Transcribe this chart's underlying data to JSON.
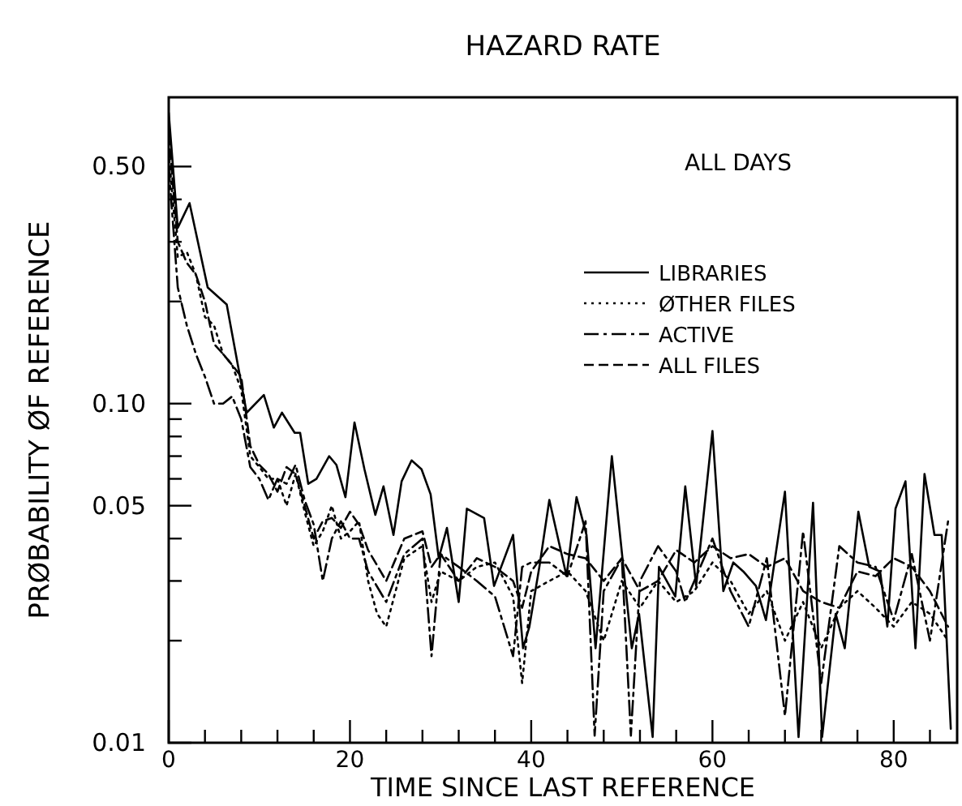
{
  "chart_data": {
    "type": "line",
    "title": "HAZARD RATE",
    "xlabel": "TIME SINCE LAST REFERENCE",
    "ylabel": "PRØBABILITY ØF REFERENCE",
    "annotations": [
      "ALL DAYS"
    ],
    "log": "y",
    "grid": false,
    "legend": "top right",
    "xlim": [
      0,
      87
    ],
    "ylim": [
      0.01,
      0.8
    ],
    "xticks": [
      0,
      {
        "value": 4,
        "label": null
      },
      {
        "value": 8,
        "label": null
      },
      {
        "value": 12,
        "label": null
      },
      {
        "value": 16,
        "label": null
      },
      20,
      {
        "value": 24,
        "label": null
      },
      {
        "value": 28,
        "label": null
      },
      {
        "value": 32,
        "label": null
      },
      {
        "value": 36,
        "label": null
      },
      40,
      {
        "value": 44,
        "label": null
      },
      {
        "value": 48,
        "label": null
      },
      {
        "value": 52,
        "label": null
      },
      {
        "value": 56,
        "label": null
      },
      60,
      {
        "value": 64,
        "label": null
      },
      {
        "value": 68,
        "label": null
      },
      {
        "value": 72,
        "label": null
      },
      {
        "value": 76,
        "label": null
      },
      80,
      {
        "value": 84,
        "label": null
      }
    ],
    "yticks": [
      0.01,
      {
        "value": 0.02,
        "label": null
      },
      {
        "value": 0.03,
        "label": null
      },
      {
        "value": 0.04,
        "label": null
      },
      0.05,
      {
        "value": 0.06,
        "label": null
      },
      {
        "value": 0.07,
        "label": null
      },
      {
        "value": 0.08,
        "label": null
      },
      {
        "value": 0.09,
        "label": null
      },
      {
        "value": 0.1,
        "label": "0.10"
      },
      {
        "value": 0.2,
        "label": null
      },
      {
        "value": 0.3,
        "label": null
      },
      {
        "value": 0.4,
        "label": null
      },
      {
        "value": 0.5,
        "label": "0.50"
      }
    ],
    "series": [
      {
        "name": "LIBRARIES",
        "color": "#000000",
        "line_style": "solid",
        "x": [
          0,
          1,
          2.3,
          4.3,
          6.4,
          8.6,
          10.5,
          11.6,
          12.5,
          13.9,
          14.5,
          15.4,
          16.3,
          17.7,
          18.5,
          19.5,
          20.5,
          21.6,
          22.8,
          23.7,
          24.8,
          25.7,
          26.8,
          27.9,
          28.9,
          29.8,
          30.7,
          32,
          32.9,
          34.8,
          35.9,
          38,
          39.1,
          39.8,
          40.9,
          42,
          43.9,
          45,
          46.1,
          47.1,
          48.9,
          51.1,
          51.9,
          53.4,
          54.1,
          55.9,
          57,
          58.2,
          60,
          61.2,
          62.3,
          63.4,
          64.8,
          65.9,
          68,
          69.5,
          71.1,
          72.1,
          73.6,
          74.6,
          76.1,
          77.3,
          78.5,
          79.3,
          80.2,
          81.3,
          82.4,
          83.4,
          84.5,
          85.3,
          86.3
        ],
        "values": [
          0.72,
          0.33,
          0.39,
          0.22,
          0.196,
          0.094,
          0.106,
          0.085,
          0.094,
          0.082,
          0.082,
          0.058,
          0.06,
          0.07,
          0.066,
          0.053,
          0.088,
          0.064,
          0.047,
          0.057,
          0.041,
          0.059,
          0.068,
          0.064,
          0.054,
          0.035,
          0.043,
          0.026,
          0.049,
          0.046,
          0.029,
          0.041,
          0.019,
          0.022,
          0.033,
          0.052,
          0.031,
          0.053,
          0.041,
          0.019,
          0.07,
          0.019,
          0.024,
          0.0104,
          0.033,
          0.027,
          0.057,
          0.029,
          0.083,
          0.028,
          0.034,
          0.032,
          0.029,
          0.023,
          0.055,
          0.0104,
          0.051,
          0.0104,
          0.024,
          0.019,
          0.048,
          0.033,
          0.032,
          0.022,
          0.049,
          0.059,
          0.019,
          0.062,
          0.041,
          0.041,
          0.011
        ]
      },
      {
        "name": "ØTHER FILES",
        "color": "#000000",
        "line_style": "dotted",
        "x": [
          0,
          1,
          2,
          3,
          4,
          5,
          6,
          7,
          8,
          9,
          10,
          11,
          12,
          13,
          14,
          15,
          16,
          17,
          18,
          19,
          20,
          21,
          22,
          23,
          24,
          26,
          28,
          29,
          30,
          32,
          34,
          36,
          38,
          39,
          40,
          42,
          44,
          46,
          48,
          50,
          52,
          54,
          56,
          58,
          60,
          62,
          64,
          66,
          68,
          70,
          72,
          74,
          76,
          78,
          80,
          82,
          84,
          86
        ],
        "values": [
          0.55,
          0.27,
          0.28,
          0.24,
          0.18,
          0.17,
          0.14,
          0.13,
          0.11,
          0.07,
          0.065,
          0.06,
          0.06,
          0.05,
          0.062,
          0.048,
          0.038,
          0.042,
          0.05,
          0.04,
          0.042,
          0.045,
          0.03,
          0.024,
          0.022,
          0.035,
          0.038,
          0.026,
          0.032,
          0.03,
          0.033,
          0.034,
          0.027,
          0.015,
          0.028,
          0.03,
          0.032,
          0.028,
          0.02,
          0.03,
          0.025,
          0.03,
          0.026,
          0.028,
          0.034,
          0.03,
          0.024,
          0.028,
          0.02,
          0.026,
          0.019,
          0.025,
          0.028,
          0.025,
          0.022,
          0.026,
          0.024,
          0.02
        ]
      },
      {
        "name": "ACTIVE",
        "color": "#000000",
        "line_style": "dashdot",
        "x": [
          0,
          1,
          2,
          3,
          4,
          5,
          6,
          7,
          8,
          9,
          10,
          11,
          12,
          13,
          14,
          15,
          16,
          17,
          18,
          19,
          20,
          21,
          22,
          24,
          26,
          28,
          29,
          30,
          32,
          34,
          36,
          38,
          39,
          40,
          42,
          44,
          46,
          47,
          48,
          50,
          51,
          52,
          54,
          56,
          57,
          58,
          60,
          62,
          64,
          66,
          68,
          70,
          72,
          74,
          76,
          78,
          80,
          82,
          84,
          86
        ],
        "values": [
          0.5,
          0.22,
          0.17,
          0.14,
          0.12,
          0.1,
          0.1,
          0.105,
          0.09,
          0.065,
          0.06,
          0.052,
          0.06,
          0.058,
          0.066,
          0.052,
          0.044,
          0.03,
          0.04,
          0.045,
          0.04,
          0.04,
          0.032,
          0.026,
          0.036,
          0.04,
          0.018,
          0.036,
          0.033,
          0.03,
          0.027,
          0.018,
          0.033,
          0.034,
          0.034,
          0.031,
          0.045,
          0.0105,
          0.028,
          0.035,
          0.0105,
          0.03,
          0.038,
          0.032,
          0.026,
          0.03,
          0.04,
          0.028,
          0.022,
          0.035,
          0.012,
          0.042,
          0.015,
          0.038,
          0.034,
          0.033,
          0.023,
          0.036,
          0.02,
          0.045
        ]
      },
      {
        "name": "ALL FILES",
        "color": "#000000",
        "line_style": "dashed",
        "x": [
          0,
          1,
          2,
          3,
          4,
          5,
          6,
          7,
          8,
          9,
          10,
          11,
          12,
          13,
          14,
          15,
          16,
          17,
          18,
          19,
          20,
          21,
          22,
          24,
          26,
          28,
          29,
          30,
          32,
          34,
          36,
          38,
          39,
          40,
          42,
          44,
          46,
          48,
          50,
          52,
          54,
          56,
          58,
          60,
          62,
          64,
          66,
          68,
          70,
          72,
          74,
          76,
          78,
          80,
          82,
          84,
          86
        ],
        "values": [
          0.62,
          0.3,
          0.26,
          0.24,
          0.2,
          0.15,
          0.14,
          0.13,
          0.12,
          0.075,
          0.066,
          0.062,
          0.055,
          0.065,
          0.062,
          0.05,
          0.04,
          0.045,
          0.046,
          0.043,
          0.048,
          0.044,
          0.037,
          0.03,
          0.04,
          0.042,
          0.033,
          0.036,
          0.03,
          0.035,
          0.033,
          0.03,
          0.025,
          0.032,
          0.038,
          0.036,
          0.035,
          0.03,
          0.035,
          0.028,
          0.03,
          0.037,
          0.034,
          0.038,
          0.035,
          0.036,
          0.033,
          0.035,
          0.028,
          0.026,
          0.025,
          0.032,
          0.031,
          0.035,
          0.033,
          0.028,
          0.022
        ]
      }
    ]
  }
}
